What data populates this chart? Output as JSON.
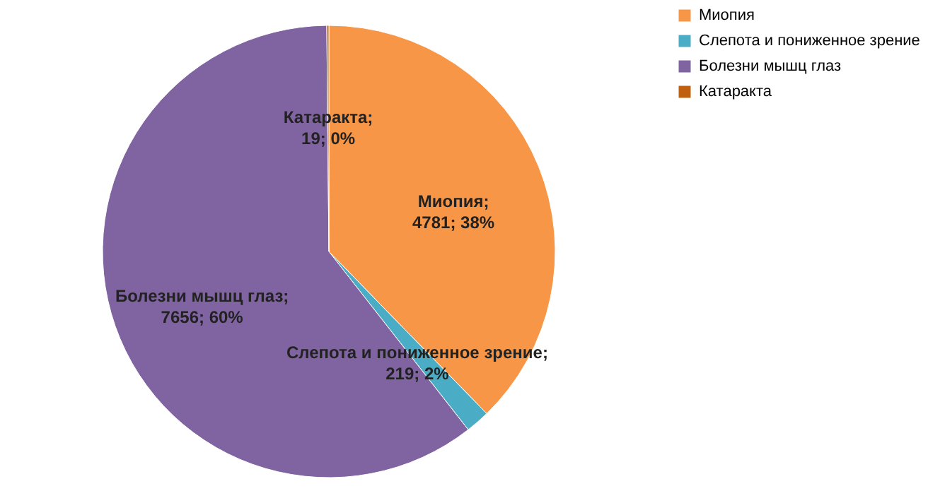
{
  "chart_data": {
    "type": "pie",
    "categories": [
      "Миопия",
      "Слепота и пониженное зрение",
      "Болезни мышц глаз",
      "Катаракта"
    ],
    "values": [
      4781,
      219,
      7656,
      19
    ],
    "colors": [
      "#f79646",
      "#4bacc6",
      "#8064a2",
      "#c0600f"
    ],
    "value_labels": [
      "Миопия; 4781; 38%",
      "Слепота и пониженное зрение; 219; 2%",
      "Болезни мышц глаз; 7656; 60%",
      "Катаракта; 19; 0%"
    ],
    "legend": "right"
  }
}
